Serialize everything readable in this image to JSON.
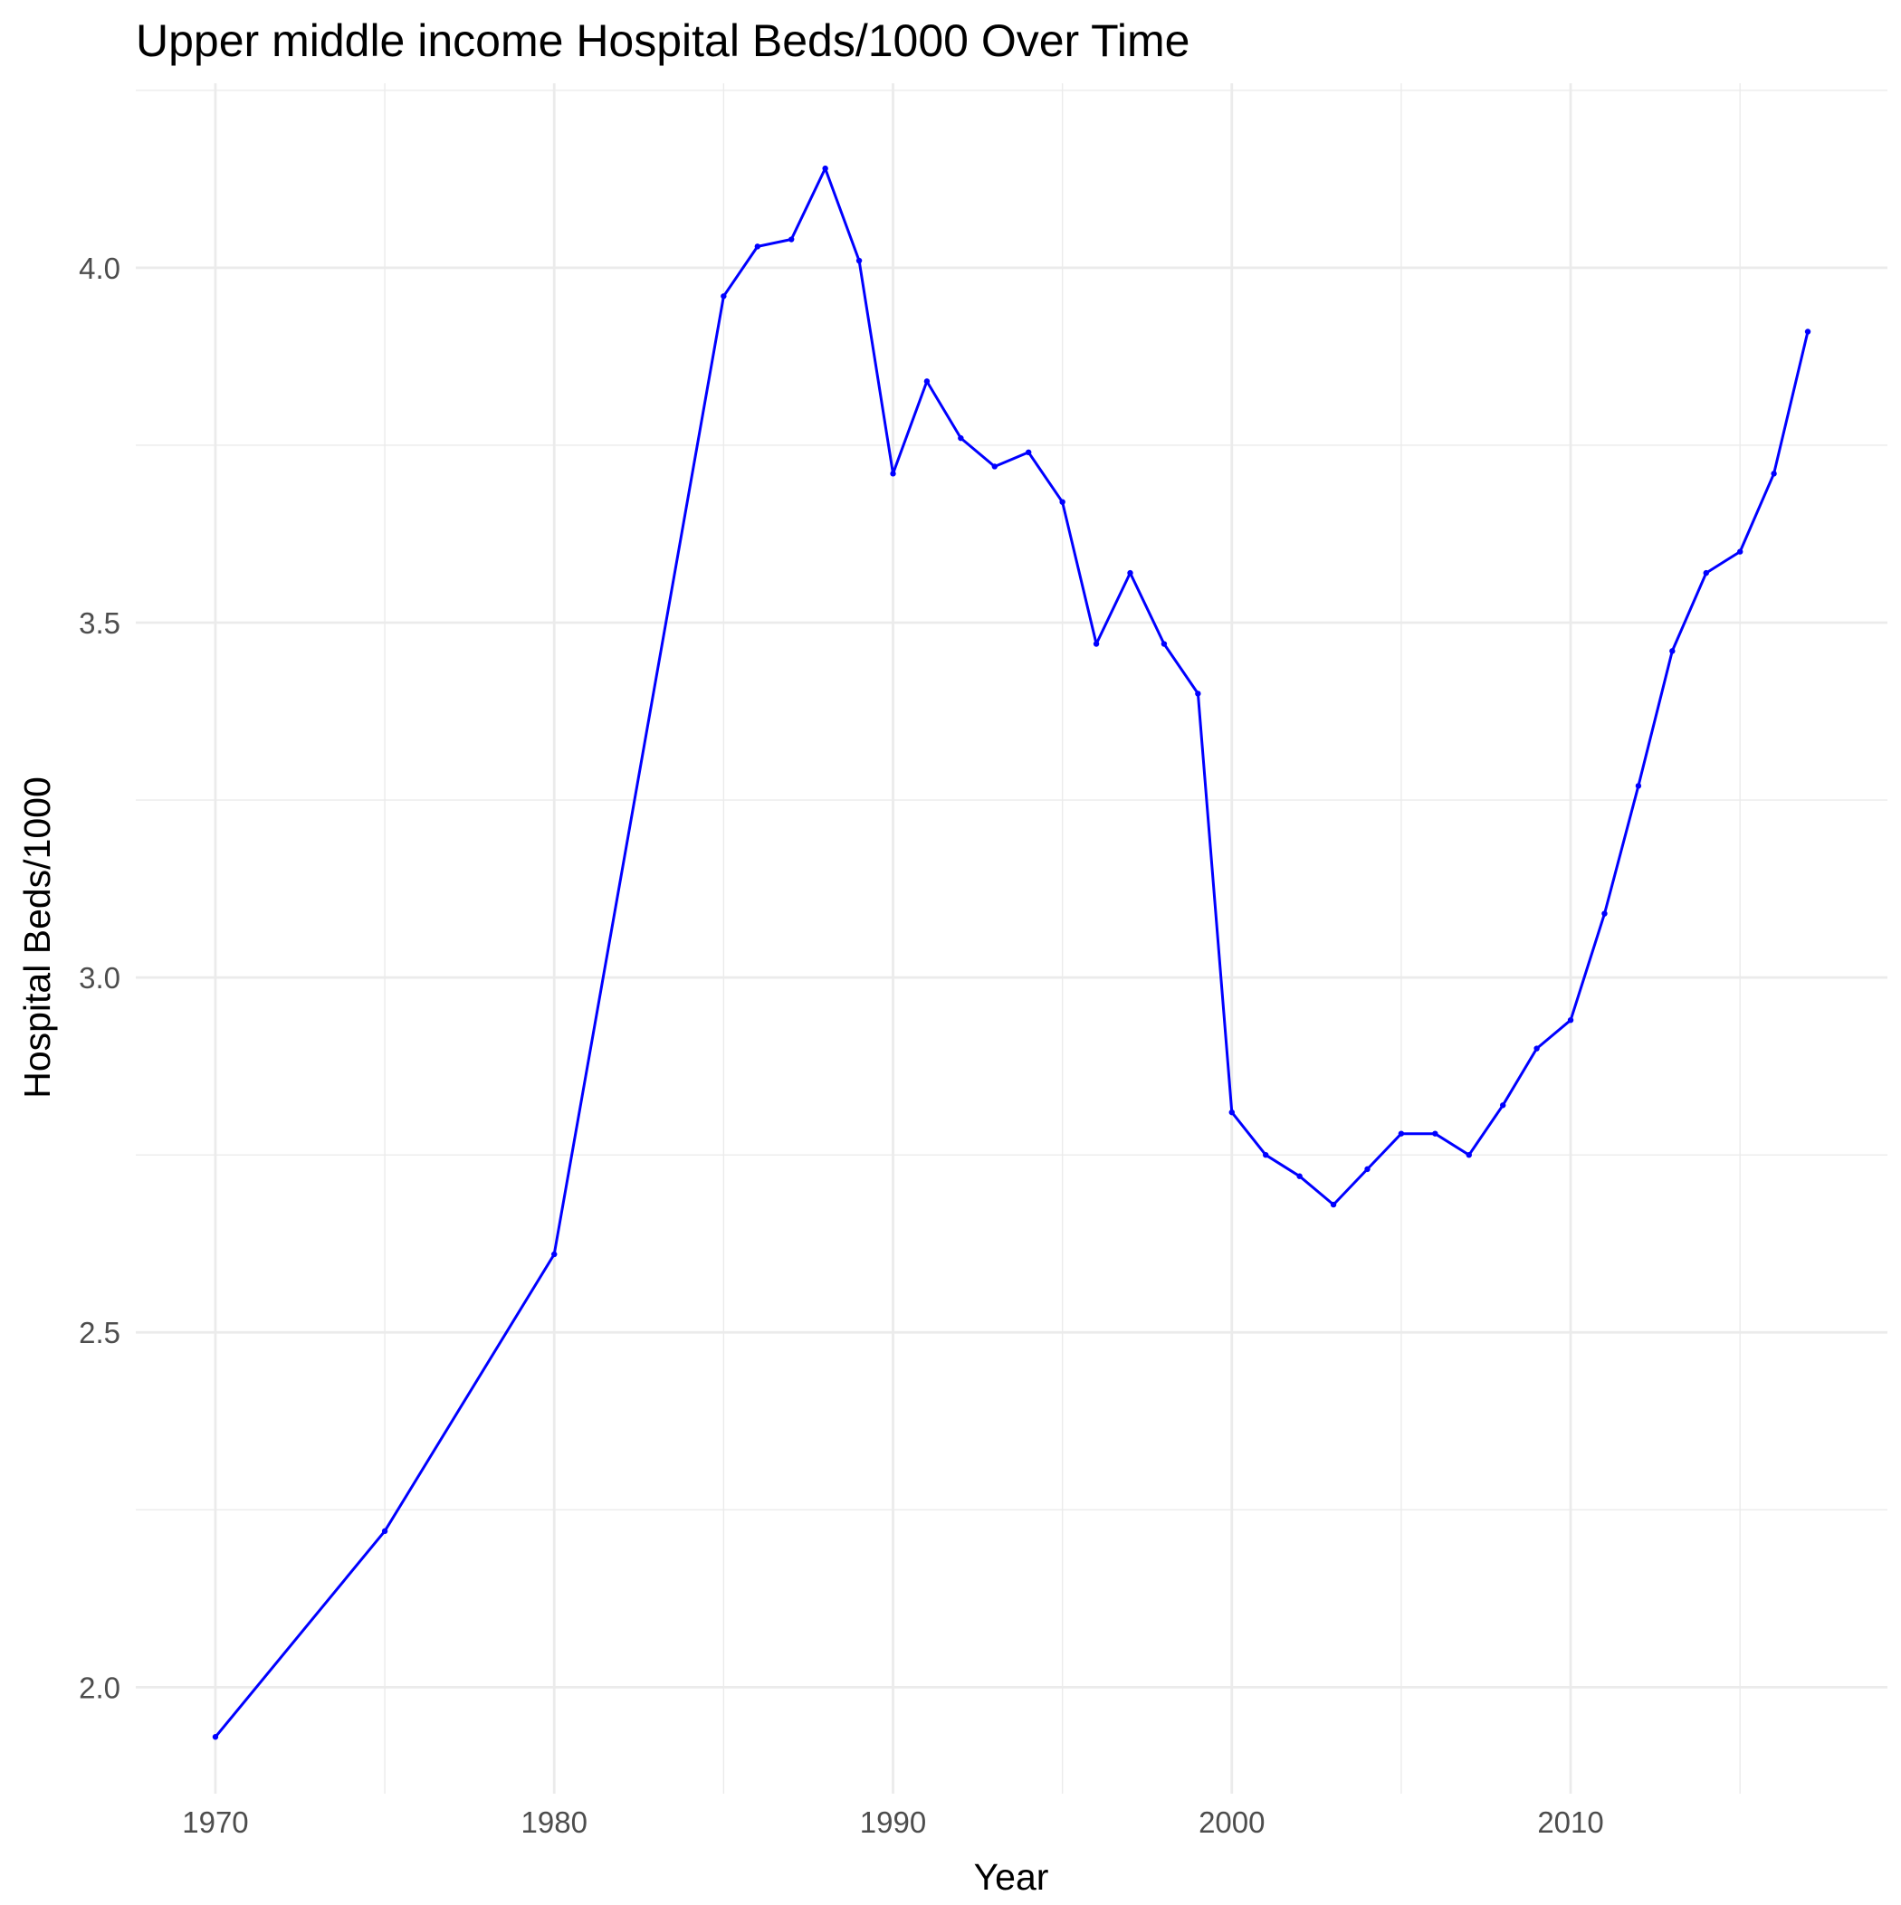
{
  "chart_data": {
    "type": "line",
    "title": "Upper middle income Hospital Beds/1000 Over Time",
    "xlabel": "Year",
    "ylabel": "Hospital Beds/1000",
    "xlim": [
      1967.65,
      2019.35
    ],
    "ylim": [
      1.85,
      4.26
    ],
    "x_ticks": [
      1970,
      1980,
      1990,
      2000,
      2010
    ],
    "y_ticks": [
      2.0,
      2.5,
      3.0,
      3.5,
      4.0
    ],
    "x_tick_labels": [
      "1970",
      "1980",
      "1990",
      "2000",
      "2010"
    ],
    "y_tick_labels": [
      "2.0",
      "2.5",
      "3.0",
      "3.5",
      "4.0"
    ],
    "grid": true,
    "legend": "none",
    "series": [
      {
        "color": "#0000ff",
        "x": [
          1970,
          1975,
          1980,
          1985,
          1986,
          1987,
          1988,
          1989,
          1990,
          1991,
          1992,
          1993,
          1994,
          1995,
          1996,
          1997,
          1998,
          1999,
          2000,
          2001,
          2002,
          2003,
          2004,
          2005,
          2006,
          2007,
          2008,
          2009,
          2010,
          2011,
          2012,
          2013,
          2014,
          2015,
          2016,
          2017
        ],
        "y": [
          1.93,
          2.22,
          2.61,
          3.96,
          4.03,
          4.04,
          4.14,
          4.01,
          3.71,
          3.84,
          3.76,
          3.72,
          3.74,
          3.67,
          3.47,
          3.57,
          3.47,
          3.4,
          2.81,
          2.75,
          2.72,
          2.68,
          2.73,
          2.78,
          2.78,
          2.75,
          2.82,
          2.9,
          2.94,
          3.09,
          3.27,
          3.46,
          3.57,
          3.6,
          3.71,
          3.91
        ]
      }
    ]
  }
}
